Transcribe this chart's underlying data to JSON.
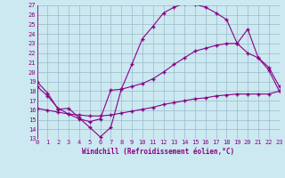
{
  "xlabel": "Windchill (Refroidissement éolien,°C)",
  "bg_color": "#cce8f0",
  "grid_color": "#99bbcc",
  "line_color": "#880088",
  "xmin": 0,
  "xmax": 23,
  "ymin": 13,
  "ymax": 27,
  "yticks": [
    13,
    14,
    15,
    16,
    17,
    18,
    19,
    20,
    21,
    22,
    23,
    24,
    25,
    26,
    27
  ],
  "xticks": [
    0,
    1,
    2,
    3,
    4,
    5,
    6,
    7,
    8,
    9,
    10,
    11,
    12,
    13,
    14,
    15,
    16,
    17,
    18,
    19,
    20,
    21,
    22,
    23
  ],
  "line1_x": [
    0,
    1,
    2,
    3,
    4,
    5,
    6,
    7,
    8,
    9,
    10,
    11,
    12,
    13,
    14,
    15,
    16,
    17,
    18,
    19,
    20,
    21,
    22,
    23
  ],
  "line1_y": [
    19.0,
    17.8,
    16.1,
    16.2,
    15.2,
    14.2,
    13.2,
    14.2,
    18.2,
    20.8,
    23.5,
    24.8,
    26.2,
    26.8,
    27.2,
    27.1,
    26.8,
    26.2,
    25.5,
    23.0,
    24.5,
    21.5,
    20.2,
    18.0
  ],
  "line2_x": [
    0,
    1,
    2,
    3,
    4,
    5,
    6,
    7,
    8,
    9,
    10,
    11,
    12,
    13,
    14,
    15,
    16,
    17,
    18,
    19,
    20,
    21,
    22,
    23
  ],
  "line2_y": [
    18.5,
    17.5,
    16.2,
    15.6,
    15.1,
    14.8,
    15.1,
    18.1,
    18.2,
    18.5,
    18.8,
    19.3,
    20.0,
    20.8,
    21.5,
    22.2,
    22.5,
    22.8,
    23.0,
    23.0,
    22.0,
    21.5,
    20.5,
    18.5
  ],
  "line3_x": [
    0,
    1,
    2,
    3,
    4,
    5,
    6,
    7,
    8,
    9,
    10,
    11,
    12,
    13,
    14,
    15,
    16,
    17,
    18,
    19,
    20,
    21,
    22,
    23
  ],
  "line3_y": [
    16.2,
    16.0,
    15.8,
    15.6,
    15.5,
    15.4,
    15.4,
    15.5,
    15.7,
    15.9,
    16.1,
    16.3,
    16.6,
    16.8,
    17.0,
    17.2,
    17.3,
    17.5,
    17.6,
    17.7,
    17.7,
    17.7,
    17.7,
    18.0
  ],
  "label_fontsize": 5.5,
  "tick_fontsize": 5.0
}
